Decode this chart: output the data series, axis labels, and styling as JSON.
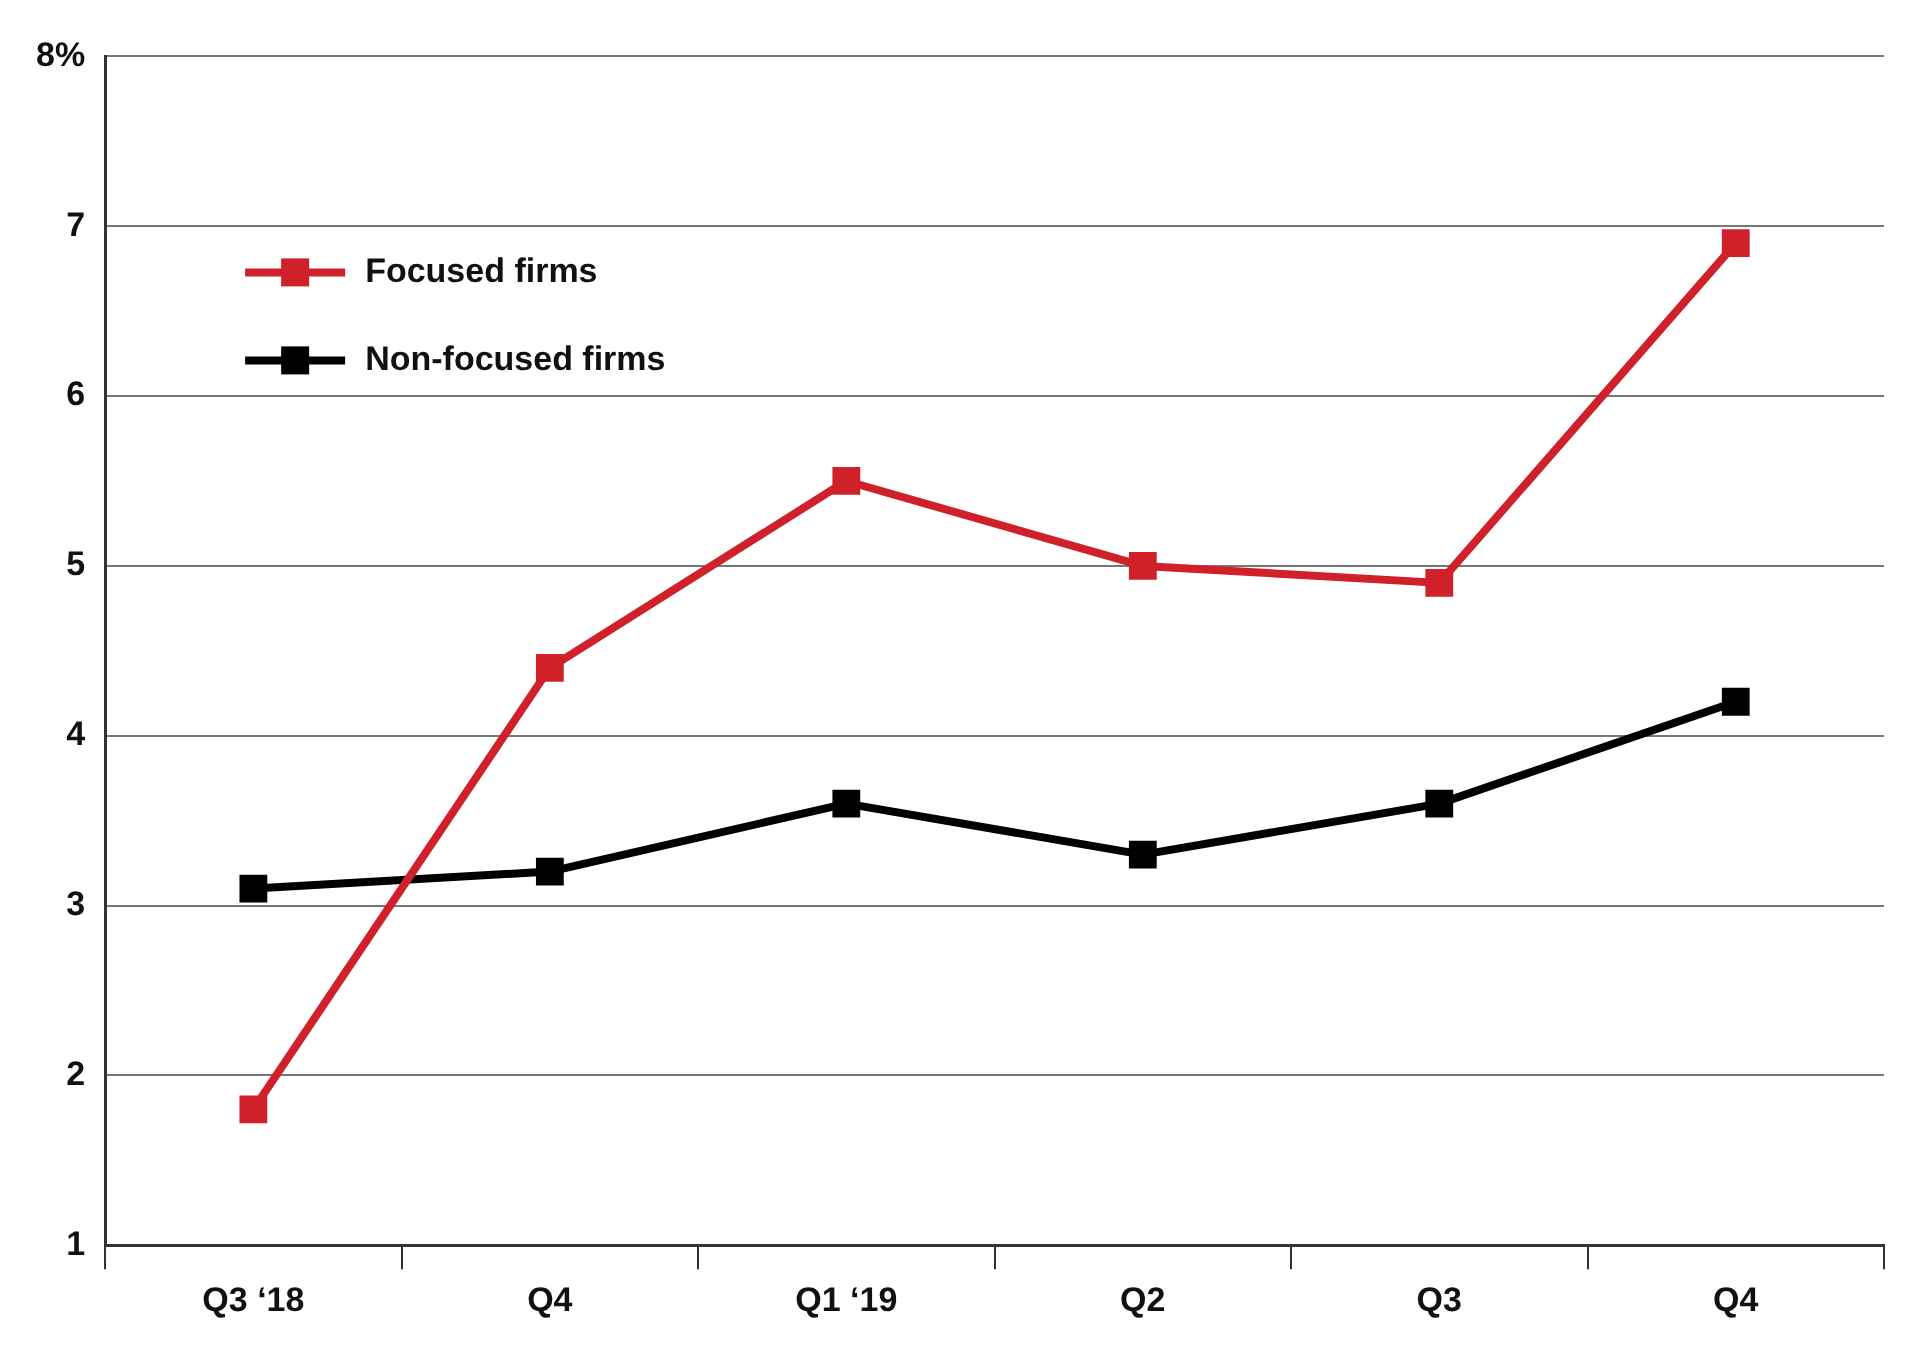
{
  "chart_data": {
    "type": "line",
    "categories": [
      "Q3 ‘18",
      "Q4",
      "Q1 ‘19",
      "Q2",
      "Q3",
      "Q4"
    ],
    "series": [
      {
        "name": "Focused firms",
        "color": "#d0202a",
        "values": [
          1.8,
          4.4,
          5.5,
          5.0,
          4.9,
          6.9
        ]
      },
      {
        "name": "Non-focused firms",
        "color": "#000000",
        "values": [
          3.1,
          3.2,
          3.6,
          3.3,
          3.6,
          4.2
        ]
      }
    ],
    "ylim": [
      1,
      8
    ],
    "yticks": [
      1,
      2,
      3,
      4,
      5,
      6,
      7,
      {
        "value": 8,
        "label": "8%"
      }
    ],
    "grid": "y",
    "legend": "top left",
    "marker": "square",
    "line_style": "solid"
  }
}
